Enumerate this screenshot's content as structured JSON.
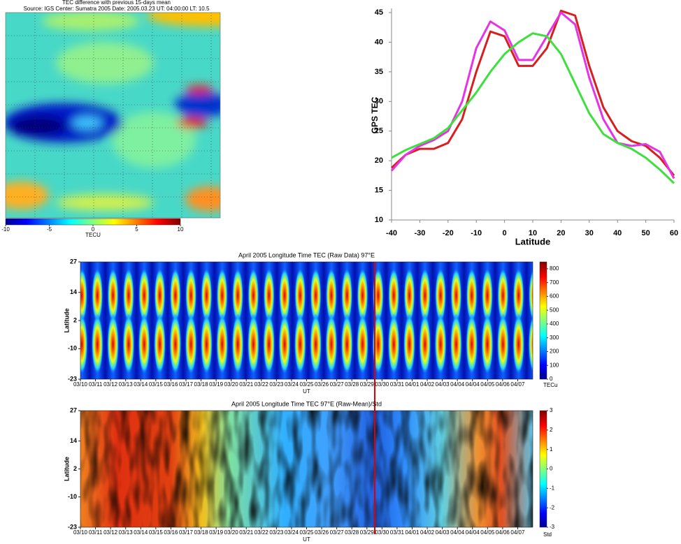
{
  "chart_data": [
    {
      "type": "map-heatmap",
      "title": "TEC difference with previous 15-days mean",
      "subtitle": "Source: IGS    Center: Sumatra 2005    Date: 2005.03.23    UT: 04:00:00    LT: 10.5",
      "clim": [
        -10,
        10
      ],
      "cticks": [
        -10,
        -5,
        0,
        5,
        10
      ],
      "colorbar_label": "TECU"
    },
    {
      "type": "line",
      "x": [
        -40,
        -35,
        -30,
        -25,
        -20,
        -15,
        -10,
        -5,
        0,
        5,
        10,
        15,
        20,
        25,
        30,
        35,
        40,
        45,
        50,
        55,
        60
      ],
      "series": [
        {
          "color": "#d81f1f",
          "values": [
            18.8,
            21,
            22,
            22,
            23,
            27,
            35,
            41.8,
            41,
            36,
            36,
            39,
            45.3,
            44.5,
            36,
            29,
            25,
            23.3,
            22.5,
            20.5,
            17.5
          ]
        },
        {
          "color": "#e534e5",
          "values": [
            18.3,
            21,
            22.5,
            23.5,
            25,
            30,
            39,
            43.5,
            42,
            37,
            37,
            41,
            45,
            43,
            34,
            27,
            23,
            22.5,
            22.8,
            21.5,
            17
          ]
        },
        {
          "color": "#3de03d",
          "values": [
            20.5,
            21.8,
            22.8,
            23.8,
            25.5,
            28.5,
            31.5,
            35,
            38,
            40,
            41.5,
            41,
            38,
            33,
            28,
            24.5,
            23,
            22,
            20.5,
            18.5,
            16.2
          ]
        }
      ],
      "xlim": [
        -40,
        60
      ],
      "xticks": [
        -40,
        -30,
        -20,
        -10,
        0,
        10,
        20,
        30,
        40,
        50,
        60
      ],
      "ylim": [
        10,
        45
      ],
      "yticks": [
        10,
        15,
        20,
        25,
        30,
        35,
        40,
        45
      ],
      "xlabel": "Latitude",
      "ylabel": "GPS TEC"
    },
    {
      "type": "time-heatmap",
      "title": "April 2005  Longitude Time TEC (Raw Data)  97°E",
      "categories": [
        "03/10",
        "03/11",
        "03/12",
        "03/13",
        "03/14",
        "03/15",
        "03/16",
        "03/17",
        "03/18",
        "03/19",
        "03/20",
        "03/21",
        "03/22",
        "03/23",
        "03/24",
        "03/25",
        "03/26",
        "03/27",
        "03/28",
        "03/29",
        "03/30",
        "03/31",
        "04/01",
        "04/02",
        "04/03",
        "04/04",
        "04/04",
        "04/05",
        "04/06",
        "04/07"
      ],
      "ylim": [
        -23,
        27
      ],
      "yticks": [
        27,
        14,
        2,
        -10,
        -23
      ],
      "ylabel": "Latitude",
      "xlabel": "UT",
      "clim": [
        0,
        850
      ],
      "cticks": [
        0,
        100,
        200,
        300,
        400,
        500,
        600,
        700,
        800
      ],
      "colorbar_label": "TECu"
    },
    {
      "type": "time-heatmap",
      "title": "April 2005  Longitude Time TEC  97°E (Raw-Mean)/Std",
      "categories": [
        "03/10",
        "03/11",
        "03/12",
        "03/13",
        "03/14",
        "03/15",
        "03/16",
        "03/17",
        "03/18",
        "03/19",
        "03/20",
        "03/21",
        "03/22",
        "03/23",
        "03/24",
        "03/25",
        "03/26",
        "03/27",
        "03/28",
        "03/29",
        "03/30",
        "03/31",
        "04/01",
        "04/02",
        "04/03",
        "04/04",
        "04/04",
        "04/05",
        "04/06",
        "04/07"
      ],
      "ylim": [
        -23,
        27
      ],
      "yticks": [
        27,
        14,
        2,
        -10,
        -23
      ],
      "ylabel": "Latitude",
      "xlabel": "UT",
      "clim": [
        -3,
        3
      ],
      "cticks": [
        -3,
        -2,
        -1,
        0,
        1,
        2,
        3
      ],
      "colorbar_label": "Std"
    }
  ]
}
